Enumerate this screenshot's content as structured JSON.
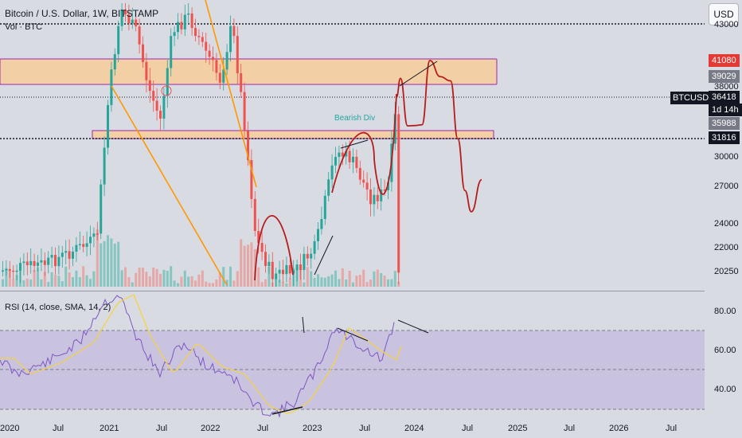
{
  "header": {
    "title": "Bitcoin / U.S. Dollar, 1W, BITSTAMP",
    "volume_label": "Vol · BTC",
    "currency_button": "USD",
    "rsi_label": "RSI (14, close, SMA, 14, 2)"
  },
  "annotations": {
    "bearish_div": "Bearish Div"
  },
  "price_axis": {
    "ticks": [
      "43000",
      "38000",
      "30000",
      "27000",
      "24000",
      "22000",
      "20250"
    ],
    "badges": [
      {
        "label": "41080",
        "color": "#e53935"
      },
      {
        "label": "39029",
        "color": "#787b86"
      },
      {
        "label": "36418",
        "color": "#131722"
      },
      {
        "label": "1d 14h",
        "color": "#131722"
      },
      {
        "label": "35988",
        "color": "#787b86"
      },
      {
        "label": "31816",
        "color": "#131722"
      }
    ],
    "symbol_label": "BTCUSD"
  },
  "rsi_axis": {
    "ticks": [
      "80.00",
      "60.00",
      "40.00"
    ]
  },
  "time_axis": {
    "ticks": [
      "2020",
      "Jul",
      "2021",
      "Jul",
      "2022",
      "Jul",
      "2023",
      "Jul",
      "2024",
      "Jul",
      "2025",
      "Jul",
      "2026",
      "Jul"
    ]
  },
  "colors": {
    "up": "#26a69a",
    "down": "#ef5350",
    "zone_fill": "#f3cfa5",
    "zone_border": "#9c27b0",
    "projection": "#b71c1c",
    "trendline": "#ff9800",
    "rsi": "#7e57c2",
    "rsi_ma": "#f5d33d",
    "rsi_band": "#c9c3e0"
  },
  "chart_data": {
    "type": "candlestick",
    "title": "Bitcoin / U.S. Dollar, 1W, BITSTAMP",
    "price_levels": {
      "last": 36418,
      "resistance_top": 41080,
      "resistance_low": 39029,
      "support_top": 35988,
      "support_low": 31816
    },
    "resistance_zone": [
      39029,
      41080
    ],
    "support_zone": [
      31816,
      35988
    ],
    "projection_path_price": [
      36418,
      38900,
      35300,
      35400,
      35600,
      41080,
      39100,
      38600,
      31800,
      26600,
      24900,
      27600
    ],
    "rsi": {
      "upper": 70,
      "mid": 50,
      "lower": 30,
      "ticks": [
        80,
        60,
        40
      ]
    }
  }
}
